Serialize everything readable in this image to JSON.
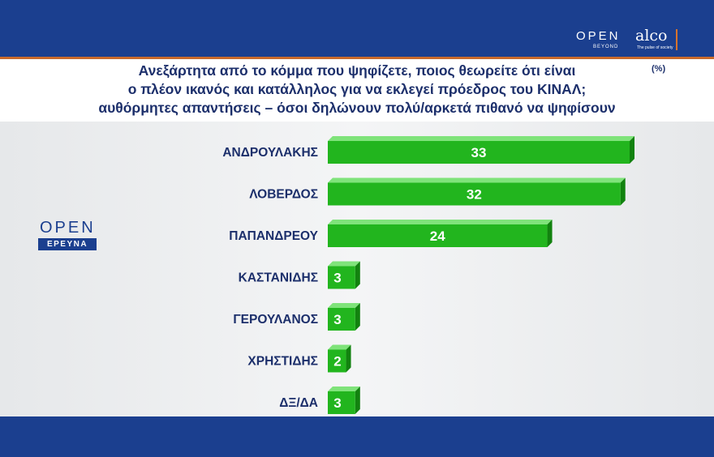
{
  "header": {
    "logo_open": "OPEN",
    "logo_beyond": "BEYOND",
    "logo_alco": "alco",
    "logo_alco_tag": "The pulse of society"
  },
  "side_logo": {
    "open": "OPEN",
    "tag": "ΕΡΕΥΝΑ"
  },
  "colors": {
    "bar": "#22b51e",
    "bar_side": "#12820f",
    "bar_top": "#7fe37a",
    "header_blue": "#1b3f8f",
    "accent_orange": "#c96a2c"
  },
  "chart_data": {
    "type": "bar",
    "orientation": "horizontal",
    "title_lines": [
      "Ανεξάρτητα από το κόμμα που ψηφίζετε, ποιος θεωρείτε ότι είναι",
      "ο πλέον ικανός και κατάλληλος για να εκλεγεί πρόεδρος του ΚΙΝΑΛ;",
      "αυθόρμητες απαντήσεις – όσοι δηλώνουν πολύ/αρκετά πιθανό να ψηφίσουν"
    ],
    "unit": "(%)",
    "categories": [
      "ΑΝΔΡΟΥΛΑΚΗΣ",
      "ΛΟΒΕΡΔΟΣ",
      "ΠΑΠΑΝΔΡΕΟΥ",
      "ΚΑΣΤΑΝΙΔΗΣ",
      "ΓΕΡΟΥΛΑΝΟΣ",
      "ΧΡΗΣΤΙΔΗΣ",
      "ΔΞ/ΔΑ"
    ],
    "values": [
      33,
      32,
      24,
      3,
      3,
      2,
      3
    ],
    "xlim": [
      0,
      33
    ],
    "grid": false,
    "legend": "none"
  }
}
